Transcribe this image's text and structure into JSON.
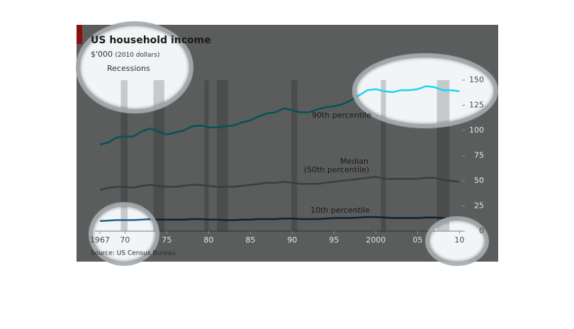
{
  "chart_data": {
    "type": "line",
    "title": "US household income",
    "subtitle": "$'000",
    "subtitle_note": "(2010 dollars)",
    "recessions_label": "Recessions",
    "source": "Source: US Census Bureau",
    "x": [
      1967,
      1968,
      1969,
      1970,
      1971,
      1972,
      1973,
      1974,
      1975,
      1976,
      1977,
      1978,
      1979,
      1980,
      1981,
      1982,
      1983,
      1984,
      1985,
      1986,
      1987,
      1988,
      1989,
      1990,
      1991,
      1992,
      1993,
      1994,
      1995,
      1996,
      1997,
      1998,
      1999,
      2000,
      2001,
      2002,
      2003,
      2004,
      2005,
      2006,
      2007,
      2008,
      2009,
      2010
    ],
    "series": [
      {
        "name": "90th percentile",
        "color": "#16d8f5",
        "values": [
          86,
          88,
          93,
          94,
          94,
          99,
          102,
          99,
          96,
          98,
          100,
          104,
          105,
          103,
          103,
          104,
          105,
          108,
          110,
          114,
          117,
          118,
          122,
          120,
          118,
          118,
          121,
          123,
          124,
          126,
          130,
          135,
          140,
          141,
          139,
          138,
          140,
          140,
          141,
          144,
          143,
          140,
          140,
          139
        ]
      },
      {
        "name": "Median",
        "note": "(50th percentile)",
        "color": "#9ea3a6",
        "values": [
          41,
          43,
          44,
          44,
          43,
          45,
          46,
          45,
          44,
          44,
          45,
          46,
          46,
          45,
          44,
          44,
          44,
          45,
          46,
          47,
          48,
          48,
          49,
          48,
          47,
          47,
          47,
          48,
          49,
          50,
          51,
          52,
          53,
          54,
          52,
          52,
          52,
          52,
          52,
          53,
          53,
          51,
          50,
          49
        ]
      },
      {
        "name": "10th percentile",
        "color": "#1f5f8c",
        "values": [
          10,
          10.5,
          11,
          11,
          11,
          11.5,
          12,
          11.5,
          11.5,
          11.5,
          11.5,
          12,
          12,
          11.5,
          11.5,
          11,
          11,
          11.5,
          11.5,
          12,
          12,
          12,
          12.5,
          12.5,
          12,
          12,
          12,
          12.5,
          13,
          13,
          13,
          13.5,
          14,
          14,
          13.5,
          13,
          13,
          13,
          13,
          13.5,
          13.5,
          13,
          12.5,
          12.5
        ]
      }
    ],
    "recessions": [
      [
        1969.5,
        1970.3
      ],
      [
        1973.4,
        1974.7
      ],
      [
        1979.5,
        1980
      ],
      [
        1981,
        1982.3
      ],
      [
        1989.9,
        1990.6
      ],
      [
        2000.6,
        2001.2
      ],
      [
        2007.3,
        2008.8
      ]
    ],
    "xlim": [
      1967,
      2010
    ],
    "xticks": [
      1967,
      {
        "value": 1970,
        "label": "70"
      },
      {
        "value": 1975,
        "label": "75"
      },
      {
        "value": 1980,
        "label": "80"
      },
      {
        "value": 1985,
        "label": "85"
      },
      {
        "value": 1990,
        "label": "90"
      },
      {
        "value": 1995,
        "label": "95"
      },
      2000,
      {
        "value": 2005,
        "label": "05"
      },
      {
        "value": 2010,
        "label": "10"
      }
    ],
    "ylim": [
      0,
      150
    ],
    "yticks": [
      0,
      25,
      50,
      75,
      100,
      125,
      150
    ]
  }
}
